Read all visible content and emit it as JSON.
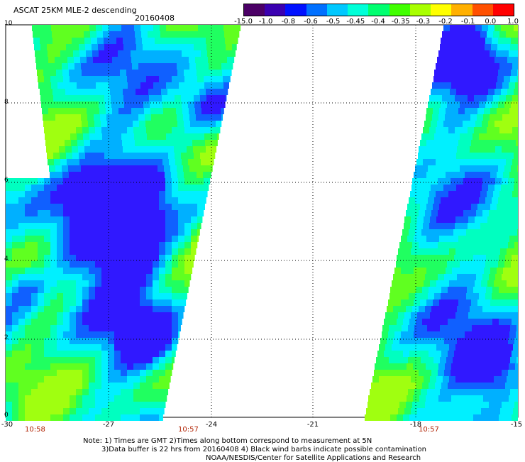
{
  "header": {
    "title": "ASCAT 25KM MLE-2 descending",
    "date": "20160408"
  },
  "colorbar": {
    "labels": [
      "-15.0",
      "-1.0",
      "-0.8",
      "-0.6",
      "-0.5",
      "-0.45",
      "-0.4",
      "-0.35",
      "-0.3",
      "-0.2",
      "-0.1",
      "0.0",
      "1.0"
    ],
    "colors": [
      "#4b0066",
      "#3a00b0",
      "#0010ff",
      "#0070ff",
      "#00c8ff",
      "#00ffd8",
      "#00ff70",
      "#40ff00",
      "#a8ff00",
      "#ffff00",
      "#ffb000",
      "#ff5000",
      "#ff0000"
    ]
  },
  "axes": {
    "y_labels": [
      "10",
      "8",
      "6",
      "4",
      "2",
      "0"
    ],
    "x_labels": [
      "-30",
      "-27",
      "-24",
      "-21",
      "-18",
      "-15"
    ]
  },
  "times": {
    "left_1": "10:58",
    "left_2": "10:57",
    "right": "10:57"
  },
  "footer": {
    "line1": "Note: 1) Times are GMT 2)Times along bottom correspond to measurement at 5N",
    "line2": "3)Data buffer is 22 hrs from 20160408 4) Black wind barbs indicate possible contamination",
    "line3": "NOAA/NESDIS/Center for Satellite Applications and Research"
  },
  "colors": {
    "time_label": "#b02000",
    "grid": "#000000"
  }
}
